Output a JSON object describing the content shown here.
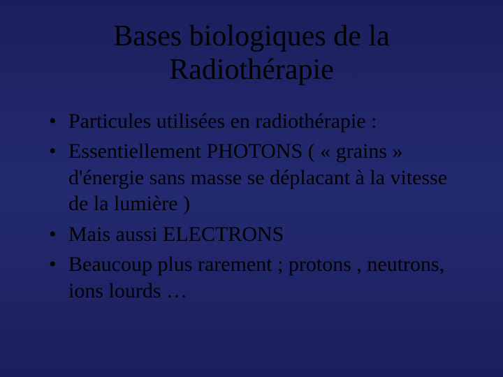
{
  "slide": {
    "background_gradient": [
      "#1a1f5c",
      "#242a70",
      "#1a1f5c"
    ],
    "text_color": "#000000",
    "font_family": "Times New Roman",
    "title": {
      "text_line1": "Bases biologiques de la",
      "text_line2": "Radiothérapie",
      "fontsize": 42,
      "align": "center"
    },
    "bullets": {
      "fontsize": 30,
      "marker": "•",
      "items": [
        "Particules utilisées en radiothérapie :",
        "Essentiellement PHOTONS ( « grains » d'énergie sans masse se déplacant à la vitesse de la lumière )",
        "Mais aussi ELECTRONS",
        "Beaucoup plus rarement ; protons , neutrons, ions lourds …"
      ]
    }
  }
}
